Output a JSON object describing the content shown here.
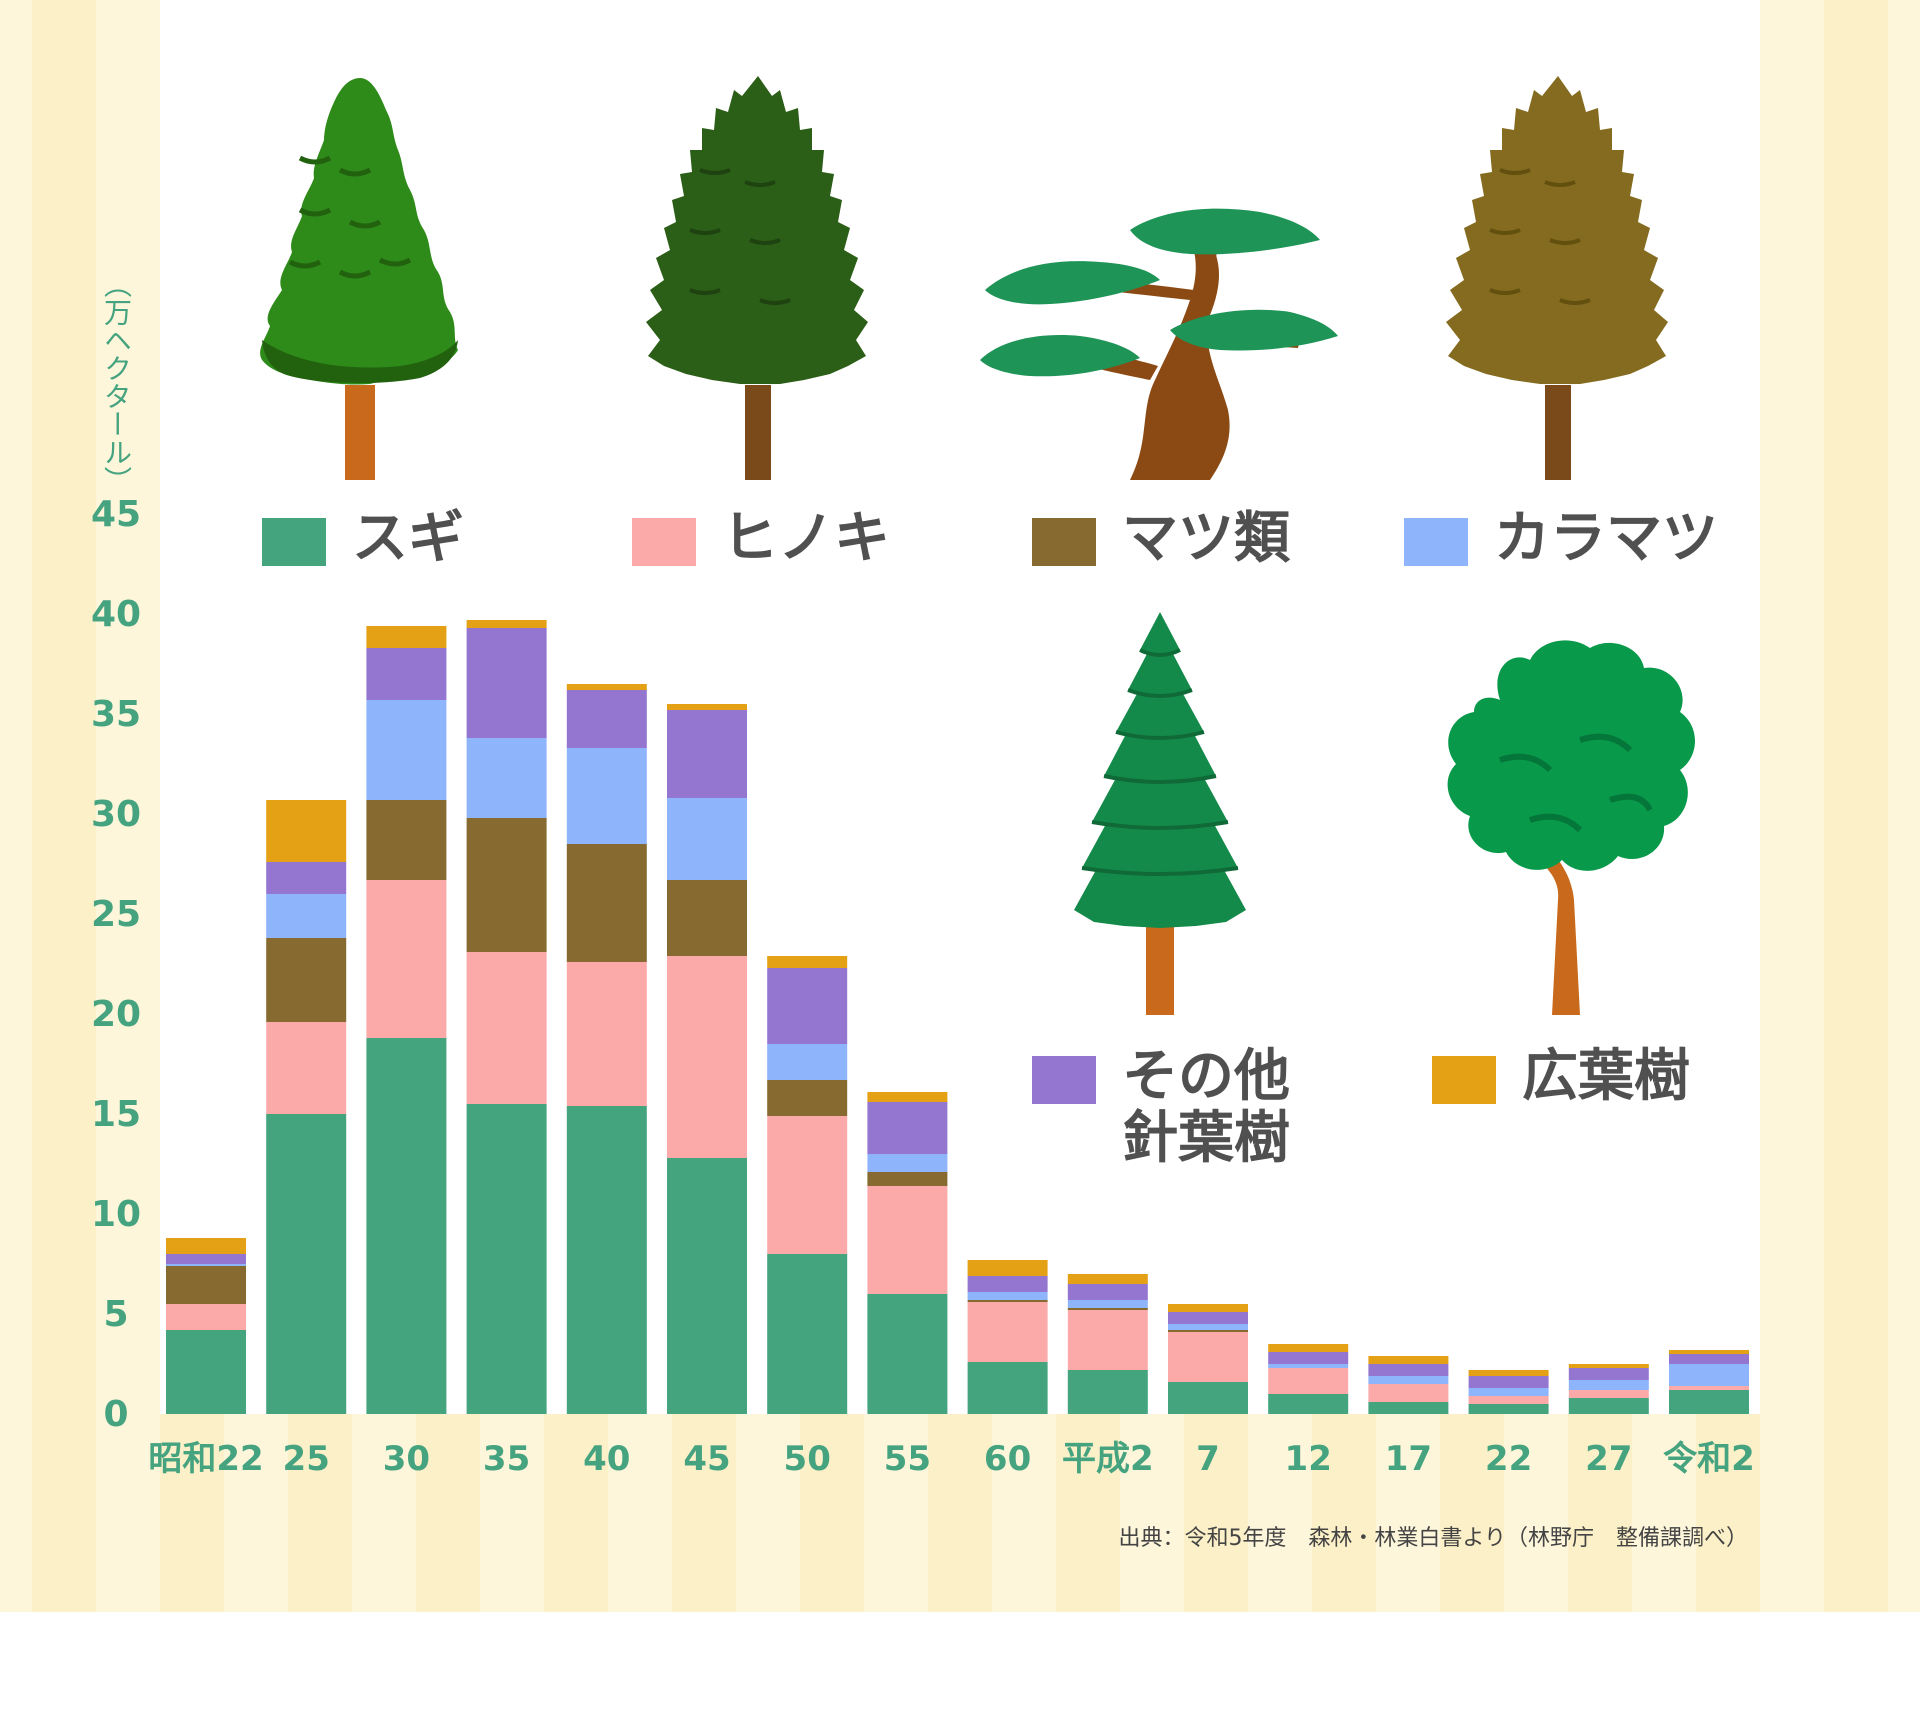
{
  "chart_data": {
    "type": "bar",
    "stacked": true,
    "ylabel": "（万ヘクタール）",
    "ylim": [
      0,
      45
    ],
    "yticks": [
      "0",
      "5",
      "10",
      "15",
      "20",
      "25",
      "30",
      "35",
      "40",
      "45"
    ],
    "grid": false,
    "categories": [
      "昭和22",
      "25",
      "30",
      "35",
      "40",
      "45",
      "50",
      "55",
      "60",
      "平成2",
      "7",
      "12",
      "17",
      "22",
      "27",
      "令和2"
    ],
    "series": [
      {
        "name": "スギ",
        "color": "#43a47e",
        "values": [
          4.2,
          15.0,
          18.8,
          15.5,
          15.4,
          12.8,
          8.0,
          6.0,
          2.6,
          2.2,
          1.6,
          1.0,
          0.6,
          0.5,
          0.8,
          1.2
        ]
      },
      {
        "name": "ヒノキ",
        "color": "#fba9a9",
        "values": [
          1.3,
          4.6,
          7.9,
          7.6,
          7.2,
          10.1,
          6.9,
          5.4,
          3.0,
          3.0,
          2.5,
          1.3,
          0.9,
          0.4,
          0.4,
          0.2
        ]
      },
      {
        "name": "マツ類",
        "color": "#876a30",
        "values": [
          1.9,
          4.2,
          4.0,
          6.7,
          5.9,
          3.8,
          1.8,
          0.7,
          0.1,
          0.1,
          0.1,
          0.0,
          0.0,
          0.0,
          0.0,
          0.0
        ]
      },
      {
        "name": "カラマツ",
        "color": "#8eb4fb",
        "values": [
          0.1,
          2.2,
          5.0,
          4.0,
          4.8,
          4.1,
          1.8,
          0.9,
          0.4,
          0.4,
          0.3,
          0.2,
          0.4,
          0.4,
          0.5,
          1.1
        ]
      },
      {
        "name": "その他針葉樹",
        "color": "#9475d0",
        "values": [
          0.5,
          1.6,
          2.6,
          5.5,
          2.9,
          4.4,
          3.8,
          2.6,
          0.8,
          0.8,
          0.6,
          0.6,
          0.6,
          0.6,
          0.6,
          0.5
        ]
      },
      {
        "name": "広葉樹",
        "color": "#e5a116",
        "values": [
          0.8,
          3.1,
          1.1,
          0.4,
          0.3,
          0.3,
          0.6,
          0.5,
          0.8,
          0.5,
          0.4,
          0.4,
          0.4,
          0.3,
          0.2,
          0.2
        ]
      }
    ]
  },
  "legend": [
    {
      "label": "スギ",
      "color": "#43a47e"
    },
    {
      "label": "ヒノキ",
      "color": "#fba9a9"
    },
    {
      "label": "マツ類",
      "color": "#876a30"
    },
    {
      "label": "カラマツ",
      "color": "#8eb4fb"
    },
    {
      "label": "その他\n針葉樹",
      "color": "#9475d0"
    },
    {
      "label": "広葉樹",
      "color": "#e5a116"
    }
  ],
  "source": "出典：令和5年度　森林・林業白書より（林野庁　整備課調べ）",
  "icons": [
    "sugi-tree-icon",
    "hinoki-tree-icon",
    "pine-tree-icon",
    "larch-tree-icon",
    "other-conifer-tree-icon",
    "broadleaf-tree-icon"
  ]
}
